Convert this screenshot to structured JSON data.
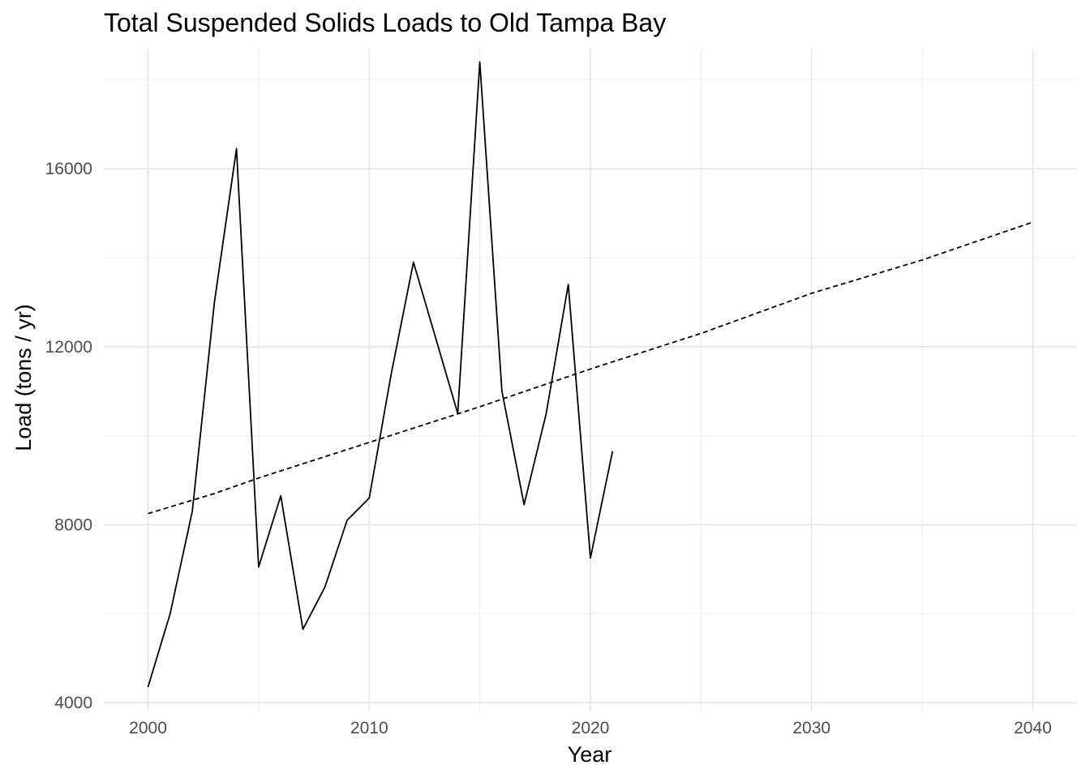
{
  "chart_data": {
    "type": "line",
    "title": "Total Suspended Solids Loads to Old Tampa Bay",
    "xlabel": "Year",
    "ylabel": "Load (tons / yr)",
    "xlim": [
      1998,
      2042
    ],
    "ylim": [
      3800,
      18700
    ],
    "x_ticks": [
      2000,
      2010,
      2020,
      2030,
      2040
    ],
    "x_minor": [
      2005,
      2015,
      2025,
      2035
    ],
    "y_ticks": [
      4000,
      8000,
      12000,
      16000
    ],
    "y_minor": [
      6000,
      10000,
      14000,
      18000
    ],
    "grid": true,
    "series": [
      {
        "style": "solid",
        "color": "#000000",
        "x": [
          2000,
          2001,
          2002,
          2003,
          2004,
          2005,
          2006,
          2007,
          2008,
          2009,
          2010,
          2011,
          2012,
          2013,
          2014,
          2015,
          2016,
          2017,
          2018,
          2019,
          2020,
          2021
        ],
        "y": [
          4350,
          6000,
          8300,
          13000,
          16450,
          7050,
          8650,
          5650,
          6600,
          8100,
          8600,
          11400,
          13900,
          12200,
          10500,
          18400,
          11000,
          8450,
          10500,
          13400,
          7250,
          9650
        ]
      },
      {
        "style": "dashed",
        "color": "#000000",
        "x": [
          2000,
          2003,
          2005,
          2010,
          2015,
          2020,
          2025,
          2030,
          2035,
          2040
        ],
        "y": [
          8250,
          8700,
          9050,
          9850,
          10650,
          11500,
          12300,
          13200,
          13950,
          14800
        ]
      }
    ]
  }
}
